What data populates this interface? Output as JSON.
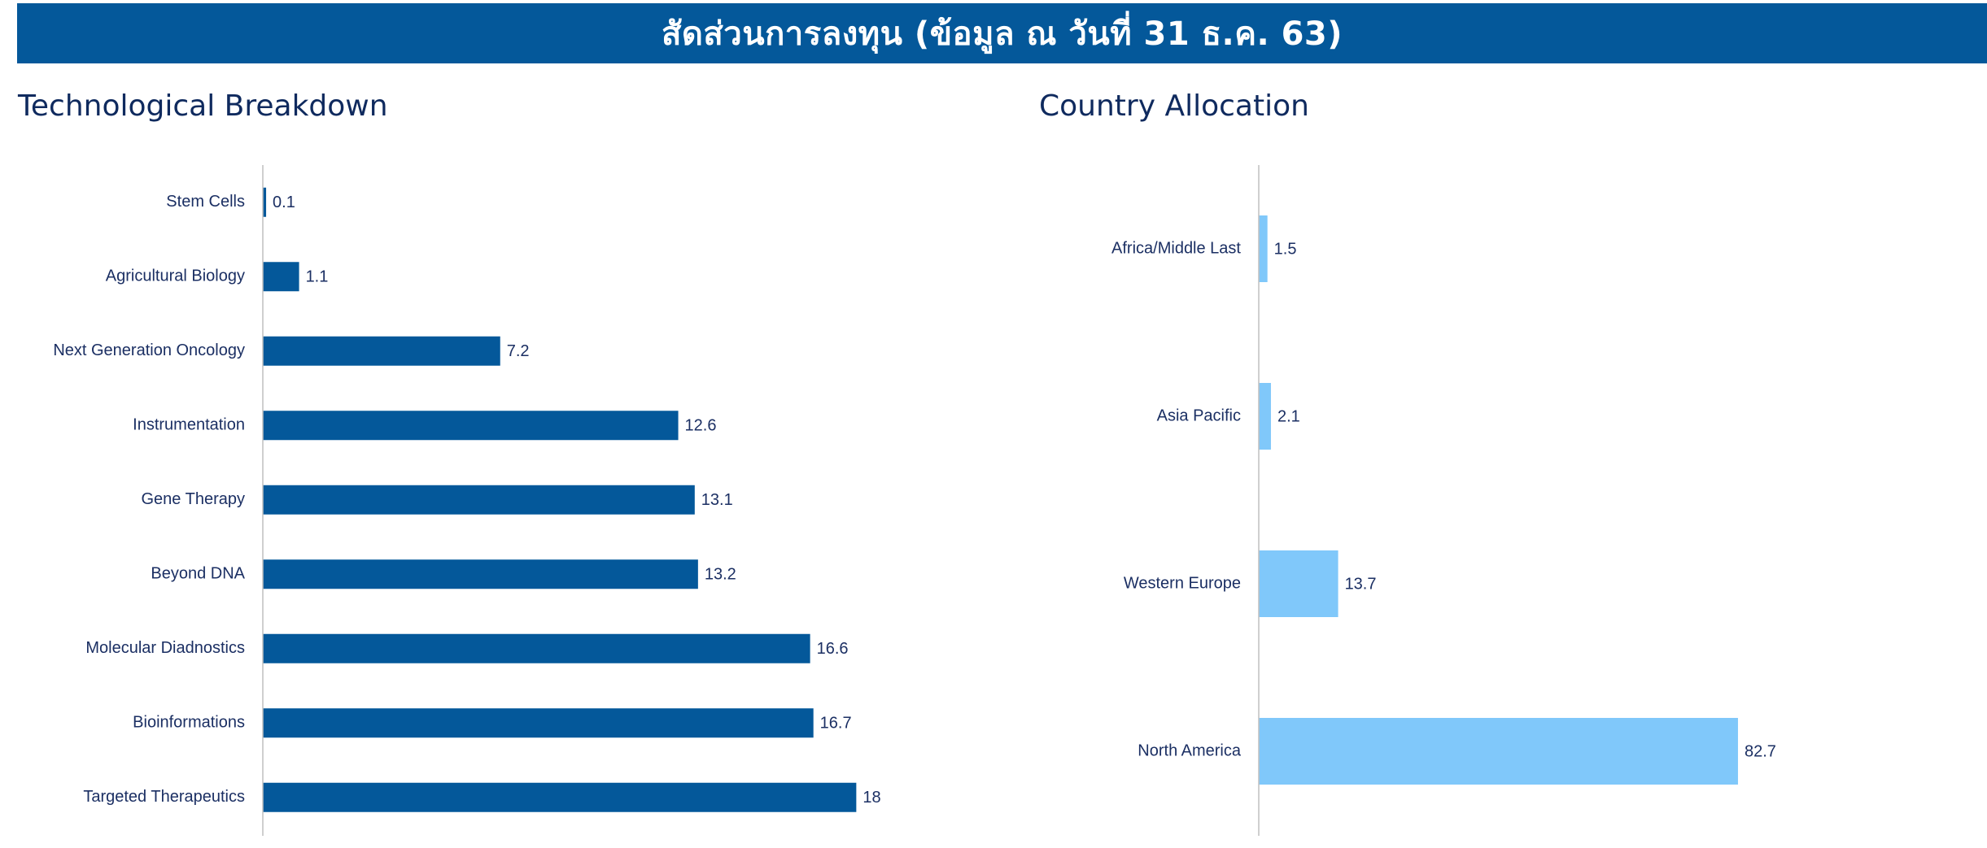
{
  "header": {
    "title": "สัดส่วนการลงทุน (ข้อมูล ณ วันที่ 31 ธ.ค. 63)",
    "background_color": "#04589A"
  },
  "chart_data": [
    {
      "type": "bar",
      "orientation": "horizontal",
      "title": "Technological Breakdown",
      "categories": [
        "Stem Cells",
        "Agricultural Biology",
        "Next Generation Oncology",
        "Instrumentation",
        "Gene Therapy",
        "Beyond DNA",
        "Molecular Diadnostics",
        "Bioinformations",
        "Targeted Therapeutics"
      ],
      "values": [
        0.1,
        1.1,
        7.2,
        12.6,
        13.1,
        13.2,
        16.6,
        16.7,
        18
      ],
      "value_labels": [
        "0.1",
        "1.1",
        "7.2",
        "12.6",
        "13.1",
        "13.2",
        "16.6",
        "16.7",
        "18"
      ],
      "color": "#04589A",
      "xlim": [
        0,
        25
      ],
      "grid": false,
      "xaxis_visible": false
    },
    {
      "type": "bar",
      "orientation": "horizontal",
      "title": "Country Allocation",
      "categories": [
        "Africa/Middle Last",
        "Asia Pacific",
        "Western Europe",
        "North America"
      ],
      "values": [
        1.5,
        2.1,
        13.7,
        82.7
      ],
      "value_labels": [
        "1.5",
        "2.1",
        "13.7",
        "82.7"
      ],
      "color": "#80C8FA",
      "xlim": [
        0,
        115
      ],
      "grid": false,
      "xaxis_visible": false
    }
  ]
}
